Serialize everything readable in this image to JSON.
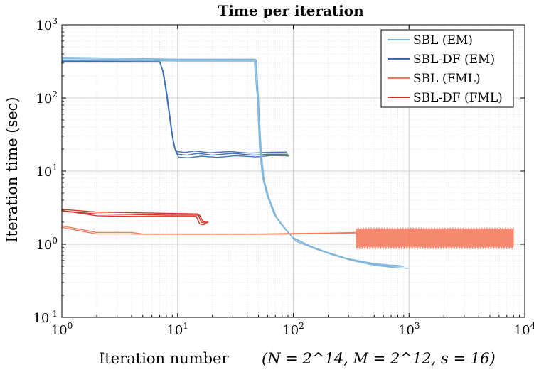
{
  "chart_data": {
    "type": "line",
    "title": "Time per iteration",
    "xlabel": "Iteration number",
    "xlabel_math": "(N = 2^14, M = 2^12, s = 16)",
    "ylabel": "Iteration time (sec)",
    "x_scale": "log",
    "y_scale": "log",
    "xlim": [
      1,
      10000
    ],
    "ylim": [
      0.1,
      1000
    ],
    "grid": true,
    "minor_grid": true,
    "legend_position": "top-right",
    "x_ticks": [
      {
        "base": "10",
        "exp": "0"
      },
      {
        "base": "10",
        "exp": "1"
      },
      {
        "base": "10",
        "exp": "2"
      },
      {
        "base": "10",
        "exp": "3"
      },
      {
        "base": "10",
        "exp": "4"
      }
    ],
    "y_ticks": [
      {
        "base": "10",
        "exp": "-1"
      },
      {
        "base": "10",
        "exp": "0"
      },
      {
        "base": "10",
        "exp": "1"
      },
      {
        "base": "10",
        "exp": "2"
      },
      {
        "base": "10",
        "exp": "3"
      }
    ],
    "series": [
      {
        "name": "SBL (EM)",
        "color": "#7bb3d9",
        "runs": [
          {
            "x": [
              1,
              10,
              47,
              50,
              52,
              55,
              60,
              70,
              80,
              100,
              150,
              200,
              300,
              500,
              700,
              900
            ],
            "y": [
              360,
              340,
              340,
              100,
              20,
              8,
              4.5,
              2.5,
              1.8,
              1.2,
              0.9,
              0.75,
              0.62,
              0.53,
              0.5,
              0.5
            ]
          },
          {
            "x": [
              1,
              10,
              48,
              50,
              53,
              56,
              62,
              72,
              85,
              105,
              160,
              220,
              320,
              520,
              750,
              1000
            ],
            "y": [
              345,
              330,
              330,
              90,
              18,
              7.5,
              4.2,
              2.3,
              1.65,
              1.1,
              0.85,
              0.72,
              0.6,
              0.51,
              0.48,
              0.47
            ]
          },
          {
            "x": [
              1,
              10,
              46,
              49,
              51,
              54,
              59,
              68,
              78,
              98,
              145,
              195,
              290,
              480,
              680,
              850
            ],
            "y": [
              330,
              320,
              320,
              95,
              22,
              8.5,
              4.8,
              2.6,
              1.9,
              1.25,
              0.92,
              0.78,
              0.64,
              0.55,
              0.52,
              0.51
            ]
          }
        ]
      },
      {
        "name": "SBL-DF (EM)",
        "color": "#3a6db5",
        "runs": [
          {
            "x": [
              1,
              7,
              7.5,
              8,
              8.5,
              9,
              9.5,
              10,
              12,
              15,
              20,
              30,
              45,
              60,
              90
            ],
            "y": [
              315,
              315,
              230,
              120,
              60,
              30,
              20,
              17,
              16.5,
              17.5,
              16.5,
              17.5,
              16.5,
              17,
              17
            ]
          },
          {
            "x": [
              1,
              7,
              7.6,
              8.1,
              8.6,
              9.1,
              9.6,
              10.2,
              12.5,
              16,
              22,
              32,
              48,
              65,
              92
            ],
            "y": [
              320,
              320,
              210,
              110,
              55,
              28,
              19,
              15.5,
              15.2,
              16,
              15.4,
              16.2,
              15.6,
              16.3,
              16.1
            ]
          },
          {
            "x": [
              1,
              7,
              7.4,
              7.9,
              8.4,
              8.9,
              9.4,
              9.9,
              11.5,
              14,
              19,
              28,
              42,
              58,
              88
            ],
            "y": [
              310,
              310,
              240,
              130,
              65,
              33,
              21,
              18.5,
              18,
              18.8,
              17.8,
              18.5,
              17.6,
              18,
              18.2
            ]
          }
        ]
      },
      {
        "name": "SBL (FML)",
        "color": "#f4775a",
        "runs": [
          {
            "x": [
              1,
              2,
              3,
              4,
              5,
              10,
              50,
              100,
              200,
              350
            ],
            "y": [
              1.78,
              1.45,
              1.45,
              1.45,
              1.38,
              1.38,
              1.38,
              1.4,
              1.42,
              1.45
            ]
          },
          {
            "x": [
              1,
              2,
              3,
              4,
              5,
              10,
              50,
              100,
              200,
              350
            ],
            "y": [
              1.7,
              1.38,
              1.38,
              1.38,
              1.37,
              1.37,
              1.37,
              1.38,
              1.4,
              1.43
            ]
          }
        ],
        "band": {
          "x_start": 350,
          "x_end": 8000,
          "y_low": 0.85,
          "y_high": 1.7
        }
      },
      {
        "name": "SBL-DF (FML)",
        "color": "#d42a20",
        "runs": [
          {
            "x": [
              1,
              2,
              4,
              8,
              15,
              16,
              17,
              18
            ],
            "y": [
              3.0,
              2.75,
              2.7,
              2.65,
              2.6,
              2.0,
              1.95,
              1.95
            ]
          },
          {
            "x": [
              1,
              2,
              4,
              8,
              15.5,
              16.5,
              17.5,
              18.5
            ],
            "y": [
              2.85,
              2.6,
              2.55,
              2.5,
              2.5,
              2.05,
              2.0,
              2.0
            ]
          },
          {
            "x": [
              1,
              2,
              4,
              8,
              14.5,
              15.5,
              16.5,
              17.5
            ],
            "y": [
              2.9,
              2.45,
              2.4,
              2.4,
              2.4,
              1.9,
              1.85,
              1.9
            ]
          }
        ]
      }
    ]
  }
}
